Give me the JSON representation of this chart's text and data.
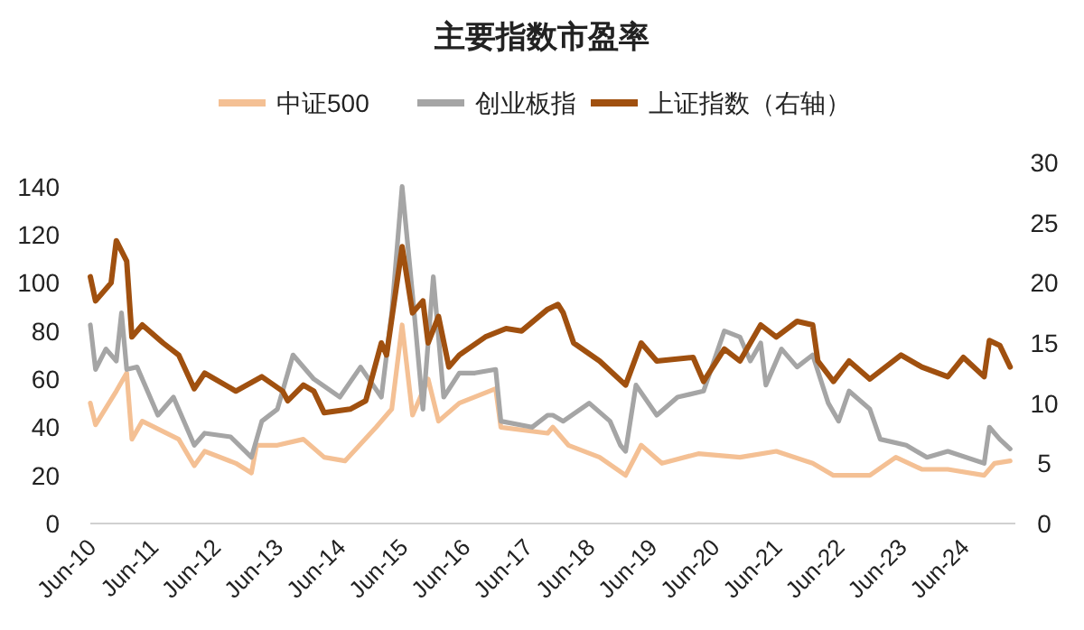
{
  "chart_data": {
    "type": "line",
    "title": "主要指数市盈率",
    "legend": "top",
    "marker": "none",
    "line_style": "solid",
    "grid": false,
    "xlim": [
      "2010-06",
      "2025-04"
    ],
    "xticks": [
      {
        "value": "2010-06",
        "label": "Jun-10"
      },
      {
        "value": "2011-06",
        "label": "Jun-11"
      },
      {
        "value": "2012-06",
        "label": "Jun-12"
      },
      {
        "value": "2013-06",
        "label": "Jun-13"
      },
      {
        "value": "2014-06",
        "label": "Jun-14"
      },
      {
        "value": "2015-06",
        "label": "Jun-15"
      },
      {
        "value": "2016-06",
        "label": "Jun-16"
      },
      {
        "value": "2017-06",
        "label": "Jun-17"
      },
      {
        "value": "2018-06",
        "label": "Jun-18"
      },
      {
        "value": "2019-06",
        "label": "Jun-19"
      },
      {
        "value": "2020-06",
        "label": "Jun-20"
      },
      {
        "value": "2021-06",
        "label": "Jun-21"
      },
      {
        "value": "2022-06",
        "label": "Jun-22"
      },
      {
        "value": "2023-06",
        "label": "Jun-23"
      },
      {
        "value": "2024-06",
        "label": "Jun-24"
      }
    ],
    "ylim": [
      0,
      140
    ],
    "yticks": [
      0,
      20,
      40,
      60,
      80,
      100,
      120,
      140
    ],
    "y2lim": [
      0,
      30
    ],
    "y2ticks": [
      0,
      5,
      10,
      15,
      20,
      25,
      30
    ],
    "series": [
      {
        "name": "中证500",
        "color": "#f4c094",
        "x": [
          "2010-06",
          "2010-07",
          "2010-11",
          "2011-01",
          "2011-02",
          "2011-04",
          "2011-11",
          "2012-02",
          "2012-04",
          "2012-10",
          "2013-01",
          "2013-02",
          "2013-06",
          "2013-11",
          "2014-03",
          "2014-07",
          "2015-01",
          "2015-04",
          "2015-06",
          "2015-08",
          "2015-11",
          "2016-01",
          "2016-05",
          "2016-12",
          "2017-01",
          "2017-10",
          "2017-11",
          "2018-02",
          "2018-08",
          "2019-01",
          "2019-04",
          "2019-08",
          "2020-03",
          "2020-11",
          "2021-06",
          "2022-01",
          "2022-05",
          "2022-12",
          "2023-05",
          "2023-10",
          "2024-03",
          "2024-10",
          "2024-12",
          "2025-03"
        ],
        "values": [
          50,
          41,
          55,
          62.5,
          35,
          42.5,
          35,
          24,
          30,
          25,
          21,
          32.5,
          32.5,
          35,
          27.5,
          26,
          40,
          47.5,
          82.5,
          45,
          60,
          42.5,
          50,
          56,
          40,
          37.5,
          40,
          32.5,
          27.5,
          20,
          32.5,
          25,
          29,
          27.5,
          30,
          25,
          20,
          20,
          27.5,
          22.5,
          22.5,
          20,
          25,
          26
        ]
      },
      {
        "name": "创业板指",
        "color": "#a5a5a5",
        "x": [
          "2010-06",
          "2010-07",
          "2010-09",
          "2010-11",
          "2010-12",
          "2011-01",
          "2011-03",
          "2011-07",
          "2011-10",
          "2012-02",
          "2012-04",
          "2012-09",
          "2013-01",
          "2013-03",
          "2013-06",
          "2013-09",
          "2014-01",
          "2014-06",
          "2014-10",
          "2015-02",
          "2015-04",
          "2015-06",
          "2015-08",
          "2015-10",
          "2015-12",
          "2016-02",
          "2016-05",
          "2016-08",
          "2016-12",
          "2017-01",
          "2017-07",
          "2017-10",
          "2017-11",
          "2018-01",
          "2018-06",
          "2018-10",
          "2018-12",
          "2019-01",
          "2019-03",
          "2019-07",
          "2019-11",
          "2020-04",
          "2020-08",
          "2020-11",
          "2021-01",
          "2021-03",
          "2021-04",
          "2021-07",
          "2021-10",
          "2022-01",
          "2022-04",
          "2022-06",
          "2022-08",
          "2022-12",
          "2023-02",
          "2023-07",
          "2023-11",
          "2024-03",
          "2024-10",
          "2024-11",
          "2025-01",
          "2025-03"
        ],
        "values": [
          82.5,
          64,
          72.5,
          67.5,
          87.5,
          64,
          65,
          45,
          52.5,
          32.5,
          37.5,
          36,
          27.5,
          42.5,
          47.5,
          70,
          60,
          52.5,
          65,
          52.5,
          87.5,
          140,
          95,
          47.5,
          102.5,
          52.5,
          62.5,
          62.5,
          64,
          42.5,
          40,
          45,
          45,
          42.5,
          50,
          42.5,
          32.5,
          30,
          57.5,
          45,
          52.5,
          55,
          80,
          77.5,
          67.5,
          75,
          57.5,
          72.5,
          65,
          70,
          50,
          42.5,
          55,
          47.5,
          35,
          32.5,
          27.5,
          30,
          25,
          40,
          35,
          31
        ]
      },
      {
        "name": "上证指数（右轴）",
        "color": "#a0500f",
        "axis": "y2",
        "x": [
          "2010-06",
          "2010-07",
          "2010-10",
          "2010-11",
          "2011-01",
          "2011-02",
          "2011-04",
          "2011-08",
          "2011-11",
          "2012-02",
          "2012-04",
          "2012-10",
          "2013-03",
          "2013-07",
          "2013-08",
          "2013-11",
          "2014-01",
          "2014-03",
          "2014-08",
          "2014-11",
          "2015-02",
          "2015-03",
          "2015-06",
          "2015-08",
          "2015-10",
          "2015-11",
          "2016-01",
          "2016-03",
          "2016-05",
          "2016-10",
          "2017-02",
          "2017-05",
          "2017-10",
          "2017-12",
          "2018-01",
          "2018-03",
          "2018-08",
          "2019-01",
          "2019-04",
          "2019-07",
          "2020-02",
          "2020-04",
          "2020-08",
          "2020-11",
          "2021-03",
          "2021-06",
          "2021-10",
          "2022-01",
          "2022-02",
          "2022-05",
          "2022-08",
          "2022-12",
          "2023-06",
          "2023-10",
          "2024-03",
          "2024-06",
          "2024-10",
          "2024-11",
          "2025-01",
          "2025-03"
        ],
        "values": [
          20.5,
          18.5,
          20,
          23.5,
          21.8,
          15.5,
          16.5,
          15,
          14,
          11.2,
          12.5,
          11,
          12.2,
          11,
          10.2,
          11.5,
          11,
          9.2,
          9.5,
          10.2,
          15,
          14,
          23,
          17.5,
          18.5,
          15,
          17.2,
          13,
          14,
          15.5,
          16.2,
          16,
          17.8,
          18.2,
          17.5,
          15,
          13.5,
          11.5,
          15,
          13.5,
          13.8,
          11.8,
          14.5,
          13.5,
          16.5,
          15.5,
          16.8,
          16.5,
          13.5,
          11.8,
          13.5,
          12,
          14,
          13,
          12.2,
          13.8,
          12.2,
          15.2,
          14.8,
          13
        ]
      }
    ]
  }
}
